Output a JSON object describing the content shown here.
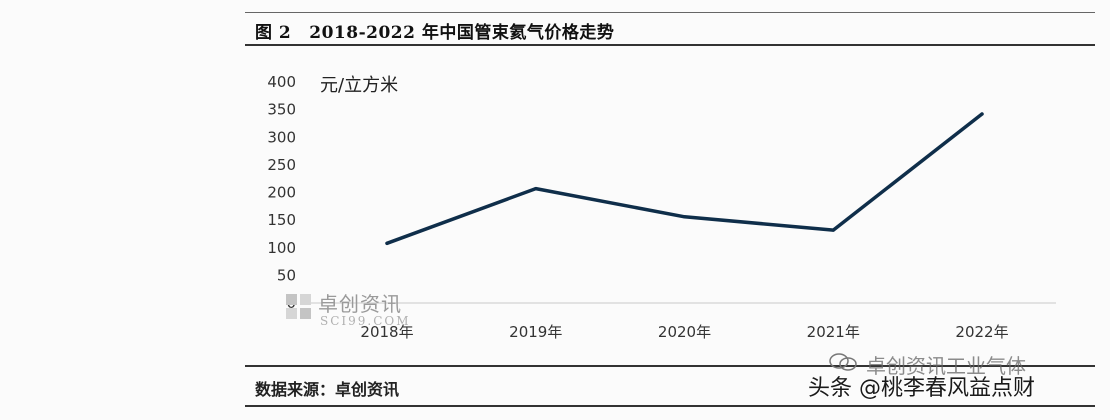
{
  "header": {
    "figure_number": "图 2",
    "title": "2018-2022 年中国管束氦气价格走势"
  },
  "footer": {
    "source": "数据来源：卓创资讯"
  },
  "watermarks": {
    "logo_text": "卓创资讯",
    "logo_sub": "SCI99.COM",
    "channel": "卓创资讯工业气体",
    "attribution": "头条 @桃李春风益点财"
  },
  "chart_data": {
    "type": "line",
    "title": "2018-2022 年中国管束氦气价格走势",
    "ylabel": "元/立方米",
    "xlabel": "",
    "categories": [
      "2018年",
      "2019年",
      "2020年",
      "2021年",
      "2022年"
    ],
    "series": [
      {
        "values": [
          108,
          207,
          156,
          132,
          342
        ],
        "color": "#0f2e4a"
      }
    ],
    "ylim": [
      0,
      400
    ],
    "yticks": [
      0,
      50,
      100,
      150,
      200,
      250,
      300,
      350,
      400
    ],
    "grid": false,
    "legend": "none"
  }
}
